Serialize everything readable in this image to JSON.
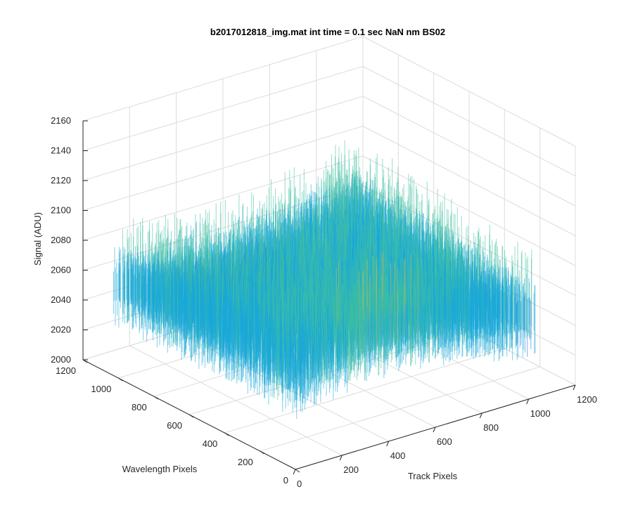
{
  "chart_data": {
    "type": "surface",
    "title": "b2017012818_img.mat int time = 0.1 sec  NaN nm BS02",
    "xlabel": "Track Pixels",
    "ylabel": "Wavelength Pixels",
    "zlabel": "Signal (ADU)",
    "xlim": [
      0,
      1200
    ],
    "ylim": [
      0,
      1200
    ],
    "zlim": [
      2000,
      2160
    ],
    "x_ticks": [
      "0",
      "200",
      "400",
      "600",
      "800",
      "1000",
      "1200"
    ],
    "y_ticks": [
      "0",
      "200",
      "400",
      "600",
      "800",
      "1000",
      "1200"
    ],
    "z_ticks": [
      "2000",
      "2020",
      "2040",
      "2060",
      "2080",
      "2100",
      "2120",
      "2140",
      "2160"
    ],
    "data_extent": {
      "x": [
        0,
        1024
      ],
      "y": [
        0,
        1024
      ]
    },
    "signal_baseline": 2062,
    "signal_range": [
      2015,
      2150
    ],
    "grid": true,
    "colormap": "parula",
    "colors": {
      "low": "#0D6FE0",
      "mid": "#1AA8D8",
      "mid_high": "#3FBFA0",
      "high": "#CDBE4E",
      "grid": "#DCDCDC",
      "axis": "#262626"
    }
  }
}
